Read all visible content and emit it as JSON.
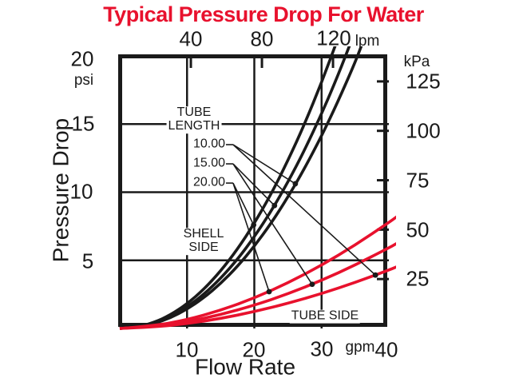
{
  "title": {
    "text": "Typical Pressure Drop For Water"
  },
  "colors": {
    "red": "#e8112d",
    "black": "#1a1a1a"
  },
  "axes": {
    "top": {
      "unit": "lpm",
      "tick_labels": [
        "40",
        "80",
        "120"
      ],
      "tick_values_lpm": [
        40,
        80,
        120
      ]
    },
    "bottom": {
      "label": "Flow Rate",
      "unit": "gpm",
      "tick_labels": [
        "10",
        "20",
        "30",
        "40"
      ],
      "tick_values_gpm": [
        10,
        20,
        30,
        40
      ],
      "range_gpm": [
        0,
        40
      ]
    },
    "left": {
      "label": "Pressure Drop",
      "unit": "psi",
      "tick_labels": [
        "20",
        "15",
        "10",
        "5"
      ],
      "tick_values_psi": [
        20,
        15,
        10,
        5
      ],
      "range_psi": [
        0,
        20
      ]
    },
    "right": {
      "unit": "kPa",
      "tick_labels": [
        "125",
        "100",
        "75",
        "50",
        "25"
      ],
      "tick_values_kpa": [
        125,
        100,
        75,
        50,
        25
      ]
    }
  },
  "annotations": {
    "tube_length_line1": "TUBE",
    "tube_length_line2": "LENGTH",
    "length_10": "10.00",
    "length_15": "15.00",
    "length_20": "20.00",
    "shell_side_line1": "SHELL",
    "shell_side_line2": "SIDE",
    "tube_side": "TUBE SIDE"
  },
  "chart_data": {
    "type": "line",
    "title": "Typical Pressure Drop For Water",
    "xlabel": "Flow Rate",
    "x_units": [
      "gpm",
      "lpm"
    ],
    "ylabel": "Pressure Drop",
    "y_units": [
      "psi",
      "kPa"
    ],
    "xlim_gpm": [
      0,
      40
    ],
    "ylim_psi": [
      0,
      20
    ],
    "lpm_per_gpm": 3.78541,
    "kpa_per_psi": 6.89476,
    "grid": true,
    "gridlines_x_gpm": [
      10,
      20,
      30
    ],
    "gridlines_y_psi": [
      5,
      10,
      15
    ],
    "series": [
      {
        "name": "Shell side, tube length 10.00",
        "group": "SHELL SIDE",
        "tube_length": "10.00",
        "color": "#1a1a1a",
        "points_gpm_psi": [
          [
            0,
            0
          ],
          [
            2.5,
            0.08
          ],
          [
            5,
            0.33
          ],
          [
            7.5,
            0.77
          ],
          [
            10,
            1.41
          ],
          [
            12.5,
            2.25
          ],
          [
            15,
            3.3
          ],
          [
            17.5,
            4.55
          ],
          [
            20,
            6.03
          ],
          [
            22.5,
            7.72
          ],
          [
            25,
            9.64
          ],
          [
            27.5,
            11.77
          ],
          [
            30,
            14.13
          ],
          [
            32.5,
            16.72
          ],
          [
            35,
            19.54
          ],
          [
            36.2,
            21.1
          ]
        ]
      },
      {
        "name": "Shell side, tube length 15.00",
        "group": "SHELL SIDE",
        "tube_length": "15.00",
        "color": "#1a1a1a",
        "points_gpm_psi": [
          [
            0,
            0
          ],
          [
            2.5,
            0.09
          ],
          [
            5,
            0.37
          ],
          [
            7.5,
            0.86
          ],
          [
            10,
            1.57
          ],
          [
            12.5,
            2.5
          ],
          [
            15,
            3.68
          ],
          [
            17.5,
            5.07
          ],
          [
            20,
            6.72
          ],
          [
            22.5,
            8.6
          ],
          [
            25,
            10.74
          ],
          [
            27.5,
            13.12
          ],
          [
            30,
            15.75
          ],
          [
            32.5,
            18.64
          ],
          [
            34.5,
            21.2
          ]
        ]
      },
      {
        "name": "Shell side, tube length 20.00",
        "group": "SHELL SIDE",
        "tube_length": "20.00",
        "color": "#1a1a1a",
        "points_gpm_psi": [
          [
            0,
            0
          ],
          [
            2.5,
            0.1
          ],
          [
            5,
            0.42
          ],
          [
            7.5,
            0.98
          ],
          [
            10,
            1.8
          ],
          [
            12.5,
            2.87
          ],
          [
            15,
            4.21
          ],
          [
            17.5,
            5.82
          ],
          [
            20,
            7.71
          ],
          [
            22.5,
            9.86
          ],
          [
            25,
            12.32
          ],
          [
            27.5,
            15.04
          ],
          [
            30,
            18.05
          ],
          [
            32.3,
            21.1
          ]
        ]
      },
      {
        "name": "Tube side, tube length 10.00",
        "group": "TUBE SIDE",
        "tube_length": "10.00",
        "color": "#e8112d",
        "points_gpm_psi": [
          [
            0,
            0
          ],
          [
            5,
            0.1
          ],
          [
            10,
            0.35
          ],
          [
            15,
            0.73
          ],
          [
            20,
            1.23
          ],
          [
            25,
            1.84
          ],
          [
            30,
            2.56
          ],
          [
            35,
            3.37
          ],
          [
            40,
            4.29
          ],
          [
            41.2,
            4.53
          ]
        ]
      },
      {
        "name": "Tube side, tube length 15.00",
        "group": "TUBE SIDE",
        "tube_length": "15.00",
        "color": "#e8112d",
        "points_gpm_psi": [
          [
            0,
            0
          ],
          [
            5,
            0.14
          ],
          [
            10,
            0.49
          ],
          [
            15,
            1.01
          ],
          [
            20,
            1.7
          ],
          [
            25,
            2.54
          ],
          [
            30,
            3.53
          ],
          [
            35,
            4.65
          ],
          [
            40,
            5.92
          ],
          [
            41.2,
            6.25
          ]
        ]
      },
      {
        "name": "Tube side, tube length 20.00",
        "group": "TUBE SIDE",
        "tube_length": "20.00",
        "color": "#e8112d",
        "points_gpm_psi": [
          [
            0,
            0
          ],
          [
            5,
            0.18
          ],
          [
            10,
            0.64
          ],
          [
            15,
            1.33
          ],
          [
            20,
            2.23
          ],
          [
            25,
            3.34
          ],
          [
            30,
            4.64
          ],
          [
            35,
            6.12
          ],
          [
            40,
            7.78
          ],
          [
            41.2,
            8.21
          ]
        ]
      }
    ],
    "callouts": [
      {
        "tube_length": "10.00",
        "dash_gpm": [
          15.67,
          16.85
        ],
        "label_psi": 13.49,
        "shell_point_gpm_psi": [
          26.1,
          10.62
        ],
        "tube_point_gpm_psi": [
          38.0,
          3.92
        ]
      },
      {
        "tube_length": "15.00",
        "dash_gpm": [
          15.67,
          16.85
        ],
        "label_psi": 12.08,
        "shell_point_gpm_psi": [
          23.0,
          9.02
        ],
        "tube_point_gpm_psi": [
          28.6,
          3.24
        ]
      },
      {
        "tube_length": "20.00",
        "dash_gpm": [
          15.67,
          16.85
        ],
        "label_psi": 10.67,
        "shell_point_gpm_psi": [
          19.9,
          7.6
        ],
        "tube_point_gpm_psi": [
          22.2,
          2.7
        ]
      }
    ]
  }
}
